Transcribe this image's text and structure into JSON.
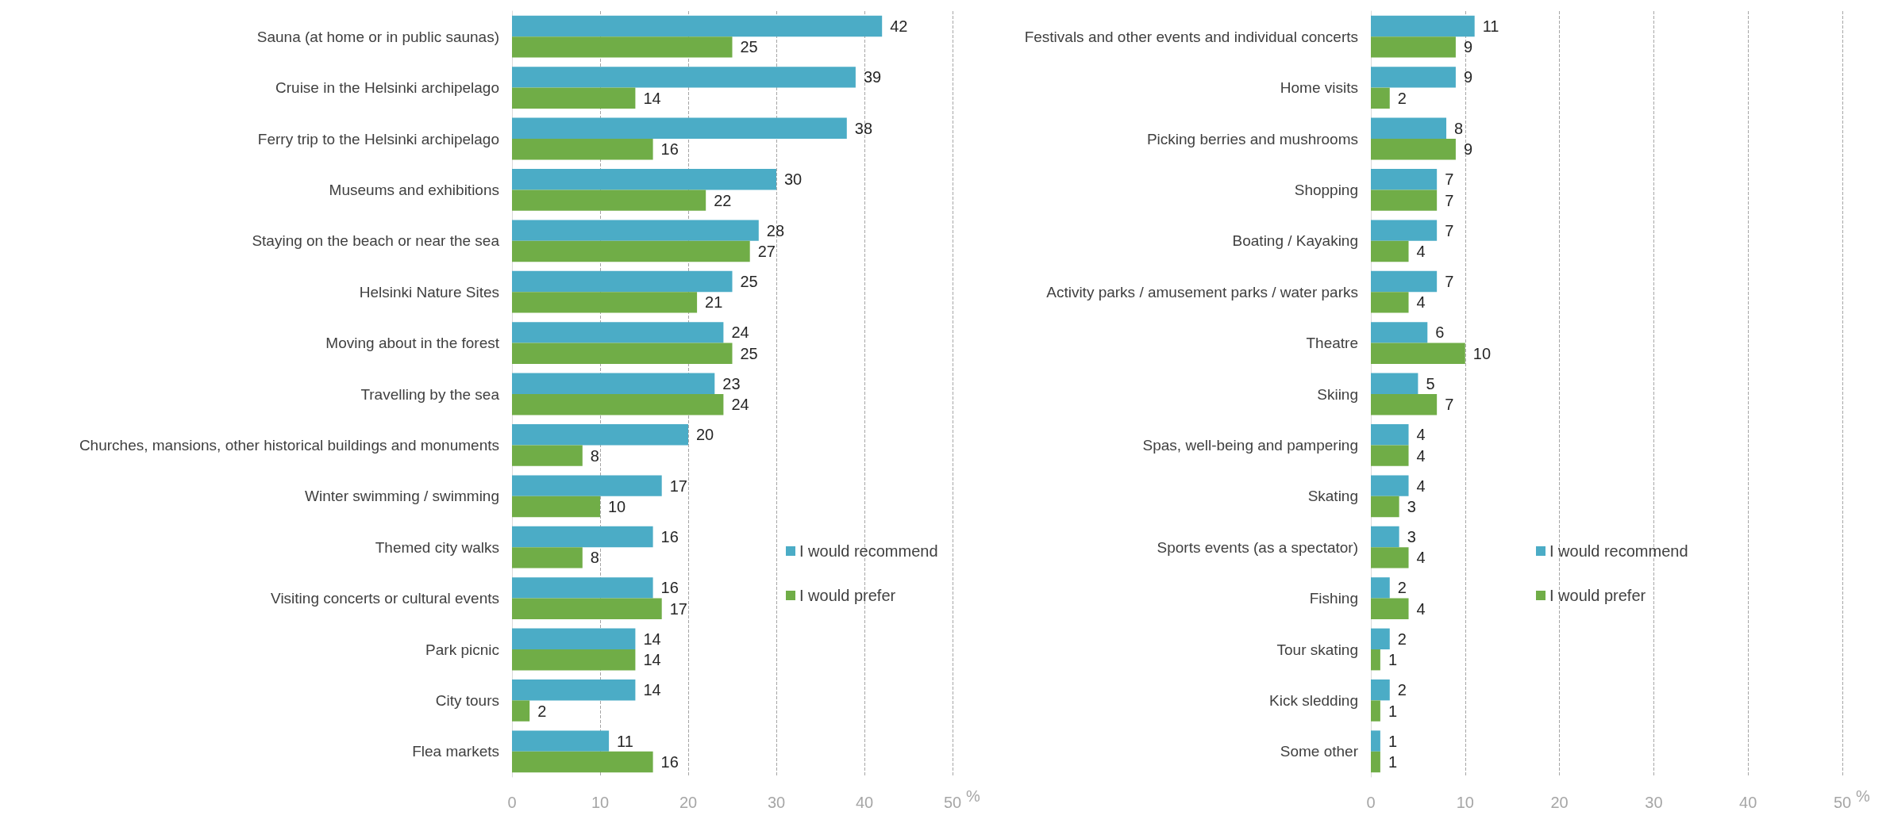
{
  "chart_data": [
    {
      "type": "bar",
      "orientation": "horizontal",
      "categories": [
        "Sauna (at home or in public saunas)",
        "Cruise in the Helsinki archipelago",
        "Ferry trip to the Helsinki archipelago",
        "Museums and exhibitions",
        "Staying on the beach or near the sea",
        "Helsinki Nature Sites",
        "Moving about in the forest",
        "Travelling by the sea",
        "Churches, mansions, other historical buildings and monuments",
        "Winter swimming / swimming",
        "Themed city walks",
        "Visiting concerts or cultural events",
        "Park picnic",
        "City tours",
        "Flea markets"
      ],
      "series": [
        {
          "name": "I would recommend",
          "color": "#4bacc6",
          "values": [
            42,
            39,
            38,
            30,
            28,
            25,
            24,
            23,
            20,
            17,
            16,
            16,
            14,
            14,
            11
          ]
        },
        {
          "name": "I would prefer",
          "color": "#70ad47",
          "values": [
            25,
            14,
            16,
            22,
            27,
            21,
            25,
            24,
            8,
            10,
            8,
            17,
            14,
            2,
            16
          ]
        }
      ],
      "xlim": [
        0,
        50
      ],
      "xticks": [
        0,
        10,
        20,
        30,
        40,
        50
      ],
      "xlabel": "%",
      "grid": "x",
      "legend": "right",
      "data_labels": true
    },
    {
      "type": "bar",
      "orientation": "horizontal",
      "categories": [
        "Festivals and other events and individual concerts",
        "Home visits",
        "Picking berries and mushrooms",
        "Shopping",
        "Boating / Kayaking",
        "Activity parks / amusement parks / water parks",
        "Theatre",
        "Skiing",
        "Spas, well-being and pampering",
        "Skating",
        "Sports events (as a spectator)",
        "Fishing",
        "Tour skating",
        "Kick sledding",
        "Some other"
      ],
      "series": [
        {
          "name": "I would recommend",
          "color": "#4bacc6",
          "values": [
            11,
            9,
            8,
            7,
            7,
            7,
            6,
            5,
            4,
            4,
            3,
            2,
            2,
            2,
            1
          ]
        },
        {
          "name": "I would prefer",
          "color": "#70ad47",
          "values": [
            9,
            2,
            9,
            7,
            4,
            4,
            10,
            7,
            4,
            3,
            4,
            4,
            1,
            1,
            1
          ]
        }
      ],
      "xlim": [
        0,
        50
      ],
      "xticks": [
        0,
        10,
        20,
        30,
        40,
        50
      ],
      "xlabel": "%",
      "grid": "x",
      "legend": "right",
      "data_labels": true
    }
  ]
}
